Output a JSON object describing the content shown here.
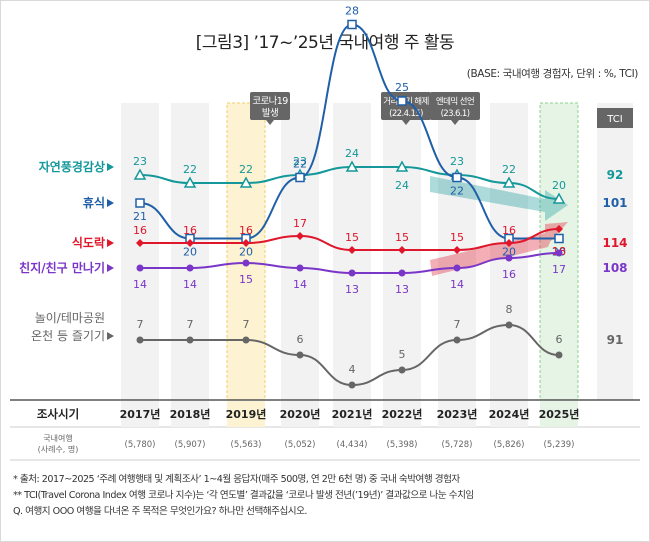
{
  "title": "[그림3] ’17~’25년 국내여행 주 활동",
  "base_note": "(BASE: 국내여행 경험자, 단위 : %, TCI)",
  "tci_header": "TCI",
  "events": [
    {
      "label": "코로나19\n발생",
      "year": "2019년"
    },
    {
      "label": "거리두기 해제\n(22.4.15)",
      "year": "2022년"
    },
    {
      "label": "엔데믹 선언\n(23.6.1)",
      "year": "2023년"
    }
  ],
  "table": {
    "row1_label": "조사시기",
    "row2_label": "국내여행\n(사례수, 명)",
    "sample_sizes": [
      "(5,780)",
      "(5,907)",
      "(5,563)",
      "(5,052)",
      "(4,434)",
      "(5,398)",
      "(5,728)",
      "(5,826)",
      "(5,239)"
    ]
  },
  "notes": [
    "* 출처: 2017~2025 ‘주례 여행행태 및 계획조사’ 1~4월 응답자(매주 500명, 연 2만 6천 명) 중 국내 숙박여행 경험자",
    "** TCI(Travel Corona Index 여행 코로나 지수)는 ‘각 연도별’ 결과값을 ‘코로나 발생 전년(’19년)’ 결과값으로 나눈 수치임",
    "Q. 여행지 OOO 여행을 다녀온 주 목적은 무엇인가요? 하나만 선택해주십시오."
  ],
  "colors": {
    "nature": "#14989a",
    "rest": "#1f5fa8",
    "food": "#e0162b",
    "friends": "#7a36c8",
    "play": "#666666",
    "hl_2019": "#fdf3d2",
    "hl_2025": "#e6f4e6",
    "band": "#f2f2f2",
    "event_box": "#666666"
  },
  "chart_data": {
    "type": "line",
    "title": "[그림3] ’17~’25년 국내여행 주 활동",
    "xlabel": "조사시기",
    "ylabel": "%",
    "categories": [
      "2017년",
      "2018년",
      "2019년",
      "2020년",
      "2021년",
      "2022년",
      "2023년",
      "2024년",
      "2025년"
    ],
    "ylim": [
      0,
      30
    ],
    "series": [
      {
        "key": "nature",
        "name": "자연풍경감상",
        "values": [
          23,
          22,
          22,
          23,
          24,
          24,
          23,
          22,
          20
        ],
        "tci": "92",
        "marker": "triangle"
      },
      {
        "key": "rest",
        "name": "휴식",
        "values": [
          21,
          20,
          20,
          22,
          28,
          25,
          22,
          20,
          20
        ],
        "tci": "101",
        "marker": "square"
      },
      {
        "key": "food",
        "name": "식도락",
        "values": [
          16,
          16,
          16,
          17,
          15,
          15,
          15,
          16,
          18
        ],
        "tci": "114",
        "marker": "diamond"
      },
      {
        "key": "friends",
        "name": "친지/친구 만나기",
        "values": [
          14,
          14,
          15,
          14,
          13,
          13,
          14,
          16,
          17
        ],
        "tci": "108",
        "marker": "circle"
      },
      {
        "key": "play",
        "name": "놀이/테마공원\n온천 등 즐기기",
        "values": [
          7,
          7,
          7,
          6,
          4,
          5,
          7,
          8,
          6
        ],
        "tci": "91",
        "marker": "circle"
      }
    ],
    "grid": false,
    "legend": "left"
  }
}
